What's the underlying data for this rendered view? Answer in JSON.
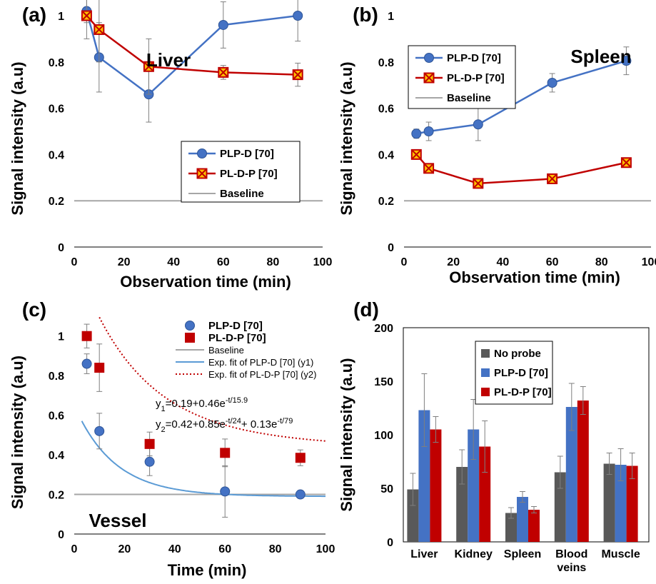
{
  "chart_data": [
    {
      "panel": "(a)",
      "type": "line",
      "annotation": "Liver",
      "xlabel": "Observation time (min)",
      "ylabel": "Signal intensity (a.u)",
      "xlim": [
        0,
        100
      ],
      "ylim": [
        0,
        1
      ],
      "xticks": [
        "0",
        "20",
        "40",
        "60",
        "80",
        "100"
      ],
      "yticks": [
        "0",
        "0.2",
        "0.4",
        "0.6",
        "0.8",
        "1"
      ],
      "legend_position": "lower-right",
      "series": [
        {
          "name": "PLP-D [70]",
          "color": "#4472C4",
          "marker": "circle",
          "x": [
            5,
            10,
            30,
            60,
            90
          ],
          "y": [
            1.02,
            0.82,
            0.66,
            0.96,
            1.0
          ],
          "err": [
            0.05,
            0.15,
            0.12,
            0.1,
            0.11
          ]
        },
        {
          "name": "PL-D-P [70]",
          "color": "#C00000",
          "marker": "square-x",
          "x": [
            5,
            10,
            30,
            60,
            90
          ],
          "y": [
            1.0,
            0.94,
            0.78,
            0.755,
            0.745
          ],
          "err": [
            0.1,
            0.14,
            0.12,
            0.03,
            0.05
          ]
        }
      ],
      "baseline": {
        "name": "Baseline",
        "y": 0.2,
        "color": "#A6A6A6"
      }
    },
    {
      "panel": "(b)",
      "type": "line",
      "annotation": "Spleen",
      "xlabel": "Observation time (min)",
      "ylabel": "Signal intensity (a.u)",
      "xlim": [
        0,
        100
      ],
      "ylim": [
        0,
        1
      ],
      "xticks": [
        "0",
        "20",
        "40",
        "60",
        "80",
        "100"
      ],
      "yticks": [
        "0",
        "0.2",
        "0.4",
        "0.6",
        "0.8",
        "1"
      ],
      "legend_position": "top-left",
      "series": [
        {
          "name": "PLP-D [70]",
          "color": "#4472C4",
          "marker": "circle",
          "x": [
            5,
            10,
            30,
            60,
            90
          ],
          "y": [
            0.49,
            0.5,
            0.53,
            0.71,
            0.805
          ],
          "err": [
            0.02,
            0.04,
            0.07,
            0.04,
            0.06
          ]
        },
        {
          "name": "PL-D-P [70]",
          "color": "#C00000",
          "marker": "square-x",
          "x": [
            5,
            10,
            30,
            60,
            90
          ],
          "y": [
            0.4,
            0.34,
            0.275,
            0.295,
            0.365
          ],
          "err": [
            0.01,
            0.01,
            0.01,
            0.01,
            0.01
          ]
        }
      ],
      "baseline": {
        "name": "Baseline",
        "y": 0.2,
        "color": "#A6A6A6"
      }
    },
    {
      "panel": "(c)",
      "type": "scatter",
      "annotation": "Vessel",
      "xlabel": "Time (min)",
      "ylabel": "Signal intensity (a.u)",
      "xlim": [
        0,
        100
      ],
      "ylim": [
        0,
        1.1
      ],
      "xticks": [
        "0",
        "20",
        "40",
        "60",
        "80",
        "100"
      ],
      "yticks": [
        "0",
        "0.2",
        "0.4",
        "0.6",
        "0.8",
        "1"
      ],
      "legend_position": "top-right",
      "series": [
        {
          "name": "PLP-D [70]",
          "color": "#4472C4",
          "marker": "circle",
          "x": [
            5,
            10,
            30,
            60,
            90
          ],
          "y": [
            0.86,
            0.52,
            0.365,
            0.215,
            0.2
          ],
          "err": [
            0.05,
            0.09,
            0.07,
            0.13,
            0.0
          ]
        },
        {
          "name": "PL-D-P [70]",
          "color": "#C00000",
          "marker": "square",
          "x": [
            5,
            10,
            30,
            60,
            90
          ],
          "y": [
            1.0,
            0.84,
            0.455,
            0.41,
            0.385
          ],
          "err": [
            0.06,
            0.12,
            0.06,
            0.07,
            0.04
          ]
        }
      ],
      "baseline": {
        "name": "Baseline",
        "y": 0.2,
        "color": "#A6A6A6"
      },
      "fits": [
        {
          "name": "Exp. fit of PLP-D [70]  (y1)",
          "color": "#5B9BD5",
          "style": "solid",
          "c": 0.19,
          "terms": [
            {
              "a": 0.46,
              "tau": 15.9
            }
          ]
        },
        {
          "name": "Exp. fit of PL-D-P [70] (y2)",
          "color": "#C00000",
          "style": "dotted",
          "c": 0.42,
          "terms": [
            {
              "a": 0.85,
              "tau": 24
            },
            {
              "a": 0.13,
              "tau": 79
            }
          ]
        }
      ],
      "equations": {
        "y1": {
          "lhs": "y",
          "sub": "1",
          "body": "=0.19+0.46e",
          "sup": "-t/15.9",
          "tail": ""
        },
        "y2": {
          "lhs": "y",
          "sub": "2",
          "body": "=0.42+0.85e",
          "sup": "-t/24",
          "tail": "+ 0.13e",
          "sup2": "-t/79"
        }
      }
    },
    {
      "panel": "(d)",
      "type": "bar",
      "ylabel": "Signal intensity (a.u)",
      "ylim": [
        0,
        200
      ],
      "yticks": [
        "0",
        "50",
        "100",
        "150",
        "200"
      ],
      "categories": [
        "Liver",
        "Kidney",
        "Spleen",
        "Blood\nveins",
        "Muscle"
      ],
      "legend_position": "top-left",
      "series": [
        {
          "name": "No probe",
          "color": "#595959",
          "values": [
            49,
            70,
            27,
            65,
            73
          ],
          "err": [
            15,
            16,
            5,
            15,
            10
          ]
        },
        {
          "name": "PLP-D [70]",
          "color": "#4472C4",
          "values": [
            123,
            105,
            42,
            126,
            72
          ],
          "err": [
            34,
            28,
            5,
            22,
            15
          ]
        },
        {
          "name": "PL-D-P [70]",
          "color": "#C00000",
          "values": [
            105,
            89,
            30,
            132,
            71
          ],
          "err": [
            12,
            24,
            3,
            13,
            12
          ]
        }
      ]
    }
  ]
}
